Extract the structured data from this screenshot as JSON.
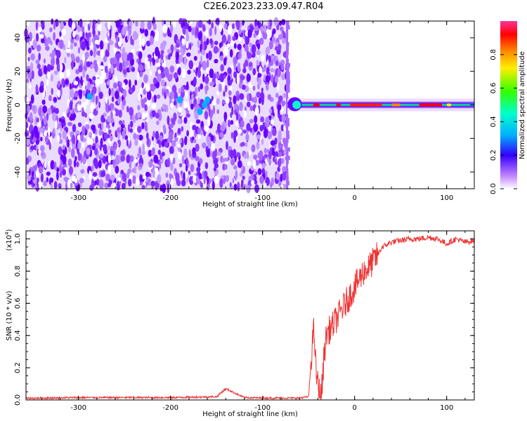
{
  "title": "C2E6.2023.233.09.47.R04",
  "chart_data": [
    {
      "type": "heatmap",
      "xlabel": "Height of straight line (km)",
      "ylabel": "Frequency (Hz)",
      "xlim": [
        -357,
        130
      ],
      "ylim": [
        -50,
        50
      ],
      "xticks": [
        -300,
        -200,
        -100,
        0,
        100
      ],
      "xtick_labels": [
        "-300",
        "-200",
        "-100",
        "0",
        "100"
      ],
      "yticks": [
        -40,
        -20,
        0,
        20,
        40
      ],
      "ytick_labels": [
        "-40",
        "-20",
        "0",
        "20",
        "40"
      ],
      "noise_region_x": [
        -357,
        -73
      ],
      "signal_band_center_hz": 0,
      "colorbar": {
        "label": "Normalized spectral amplitude",
        "range": [
          0,
          1
        ],
        "ticks": [
          0.0,
          0.2,
          0.4,
          0.6,
          0.8
        ],
        "tick_labels": [
          "0.0",
          "0.2",
          "0.4",
          "0.6",
          "0.8"
        ]
      }
    },
    {
      "type": "line",
      "xlabel": "Height of straight line (km)",
      "ylabel": "SNR (10 * v/v)",
      "y_multiplier_label": "(x10",
      "y_multiplier_exp": "4",
      "y_multiplier_close": ")",
      "xlim": [
        -357,
        130
      ],
      "ylim": [
        0,
        1.05
      ],
      "xticks": [
        -300,
        -200,
        -100,
        0,
        100
      ],
      "xtick_labels": [
        "-300",
        "-200",
        "-100",
        "0",
        "100"
      ],
      "yticks": [
        0.0,
        0.2,
        0.4,
        0.6,
        0.8,
        1.0
      ],
      "ytick_labels": [
        "0.0",
        "0.2",
        "0.4",
        "0.6",
        "0.8",
        "1.0"
      ],
      "color": "#ee3333",
      "series": [
        {
          "x": [
            -357,
            -300,
            -200,
            -150,
            -140,
            -120,
            -100,
            -60,
            -50,
            -46,
            -44,
            -43,
            -42,
            -40,
            -37,
            -35,
            -33,
            -30,
            -25,
            -20,
            -15,
            -10,
            -5,
            0,
            5,
            10,
            15,
            20,
            25,
            30,
            40,
            50,
            60,
            70,
            80,
            90,
            100,
            110,
            120,
            130
          ],
          "values": [
            0.01,
            0.015,
            0.015,
            0.02,
            0.07,
            0.015,
            0.012,
            0.012,
            0.02,
            0.35,
            0.45,
            0.3,
            0.18,
            0.1,
            0.02,
            0.1,
            0.3,
            0.42,
            0.45,
            0.5,
            0.55,
            0.6,
            0.65,
            0.7,
            0.75,
            0.8,
            0.82,
            0.86,
            0.9,
            0.95,
            0.98,
            0.99,
            1.0,
            1.0,
            1.01,
            1.0,
            0.97,
            1.0,
            0.98,
            0.99
          ]
        }
      ]
    }
  ]
}
